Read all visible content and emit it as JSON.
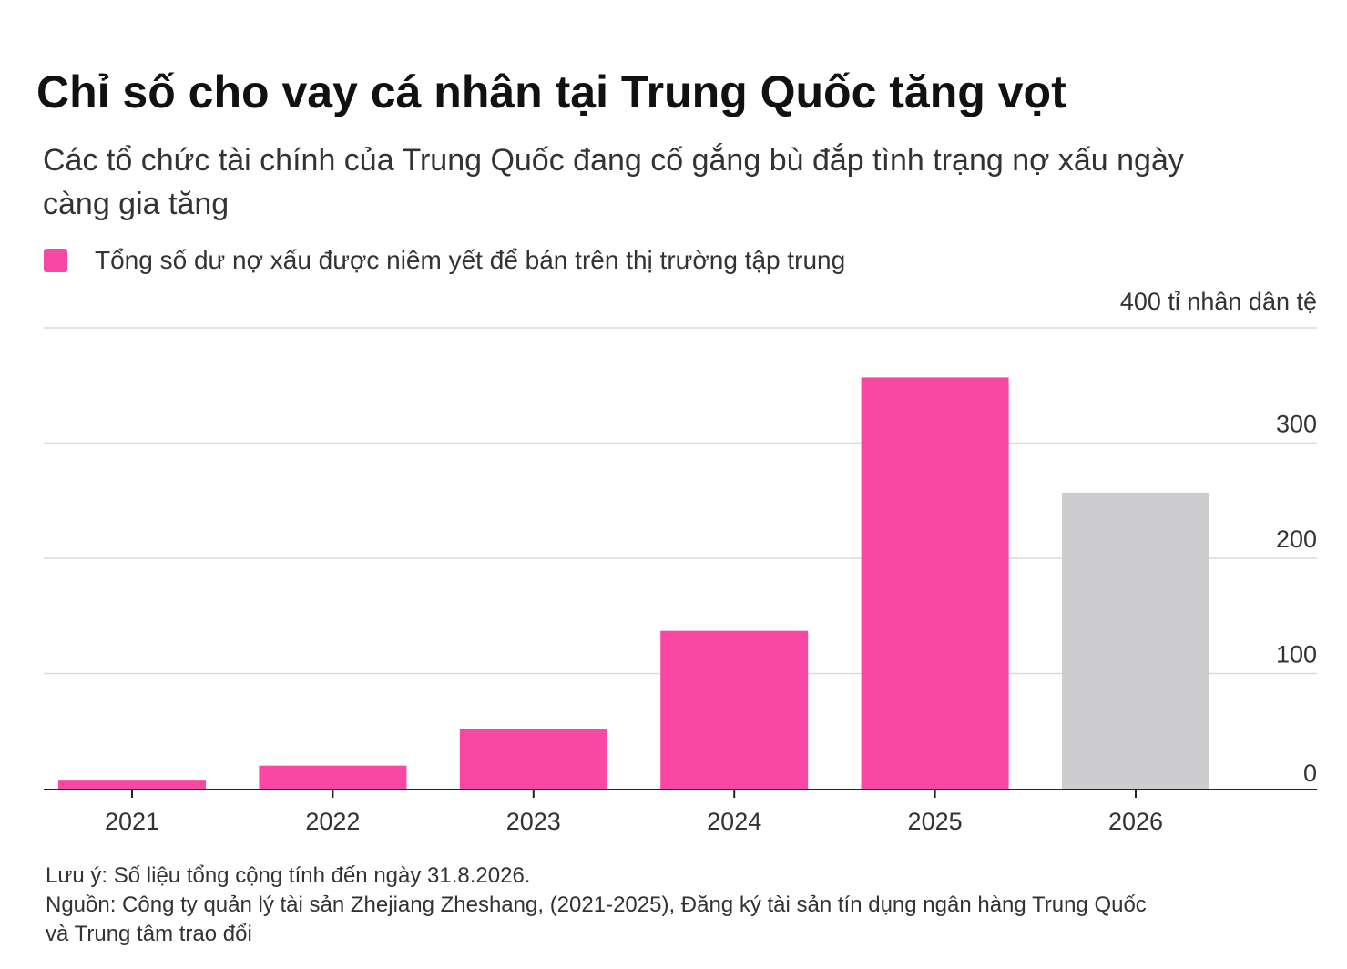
{
  "chart_data": {
    "type": "bar",
    "title": "Chỉ số cho vay cá nhân tại Trung Quốc tăng vọt",
    "subtitle": "Các tổ chức tài chính của Trung Quốc đang cố gắng bù đắp tình trạng nợ xấu ngày càng gia tăng",
    "legend": [
      {
        "name": "Tổng số dư nợ xấu được niêm yết để bán trên thị trường tập trung",
        "color": "#F848A3"
      }
    ],
    "ylabel": "400 tỉ nhân dân tệ",
    "ylim": [
      0,
      400
    ],
    "yticks": [
      0,
      100,
      200,
      300
    ],
    "grid": true,
    "categories": [
      "2021",
      "2022",
      "2023",
      "2024",
      "2025",
      "2026"
    ],
    "values": [
      7,
      20,
      52,
      137,
      357,
      257
    ],
    "colors": [
      "#F848A3",
      "#F848A3",
      "#F848A3",
      "#F848A3",
      "#F848A3",
      "#CDCDCF"
    ],
    "notes": [
      "Lưu ý: Số liệu tổng cộng tính đến ngày 31.8.2026.",
      "Nguồn: Công ty quản lý tài sản Zhejiang Zheshang, (2021-2025), Đăng ký tài sản tín dụng ngân hàng Trung Quốc",
      "và Trung tâm trao đổi"
    ]
  }
}
